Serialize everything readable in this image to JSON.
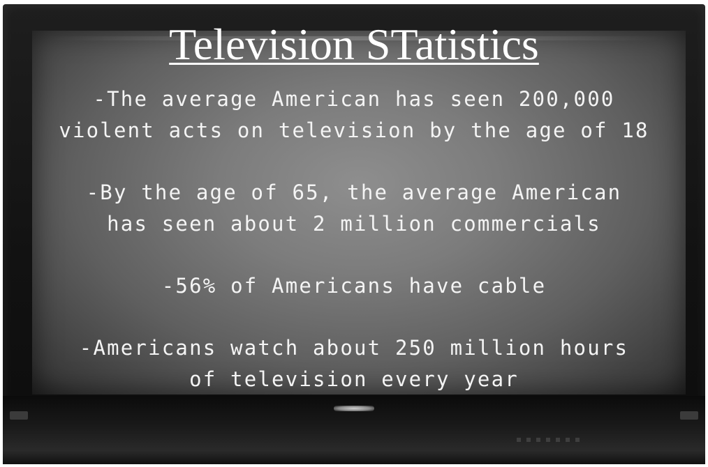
{
  "slide": {
    "title": "Television STatistics",
    "facts": [
      "-The average American has seen 200,000\nviolent acts on television by the age of 18",
      "-By the age of 65, the average American\nhas seen about 2 million commercials",
      "-56% of Americans have cable",
      "-Americans watch about 250 million hours\nof television every year"
    ]
  },
  "colors": {
    "text": "#ffffff",
    "screen": "#7c7c7c",
    "bezel": "#141414"
  }
}
